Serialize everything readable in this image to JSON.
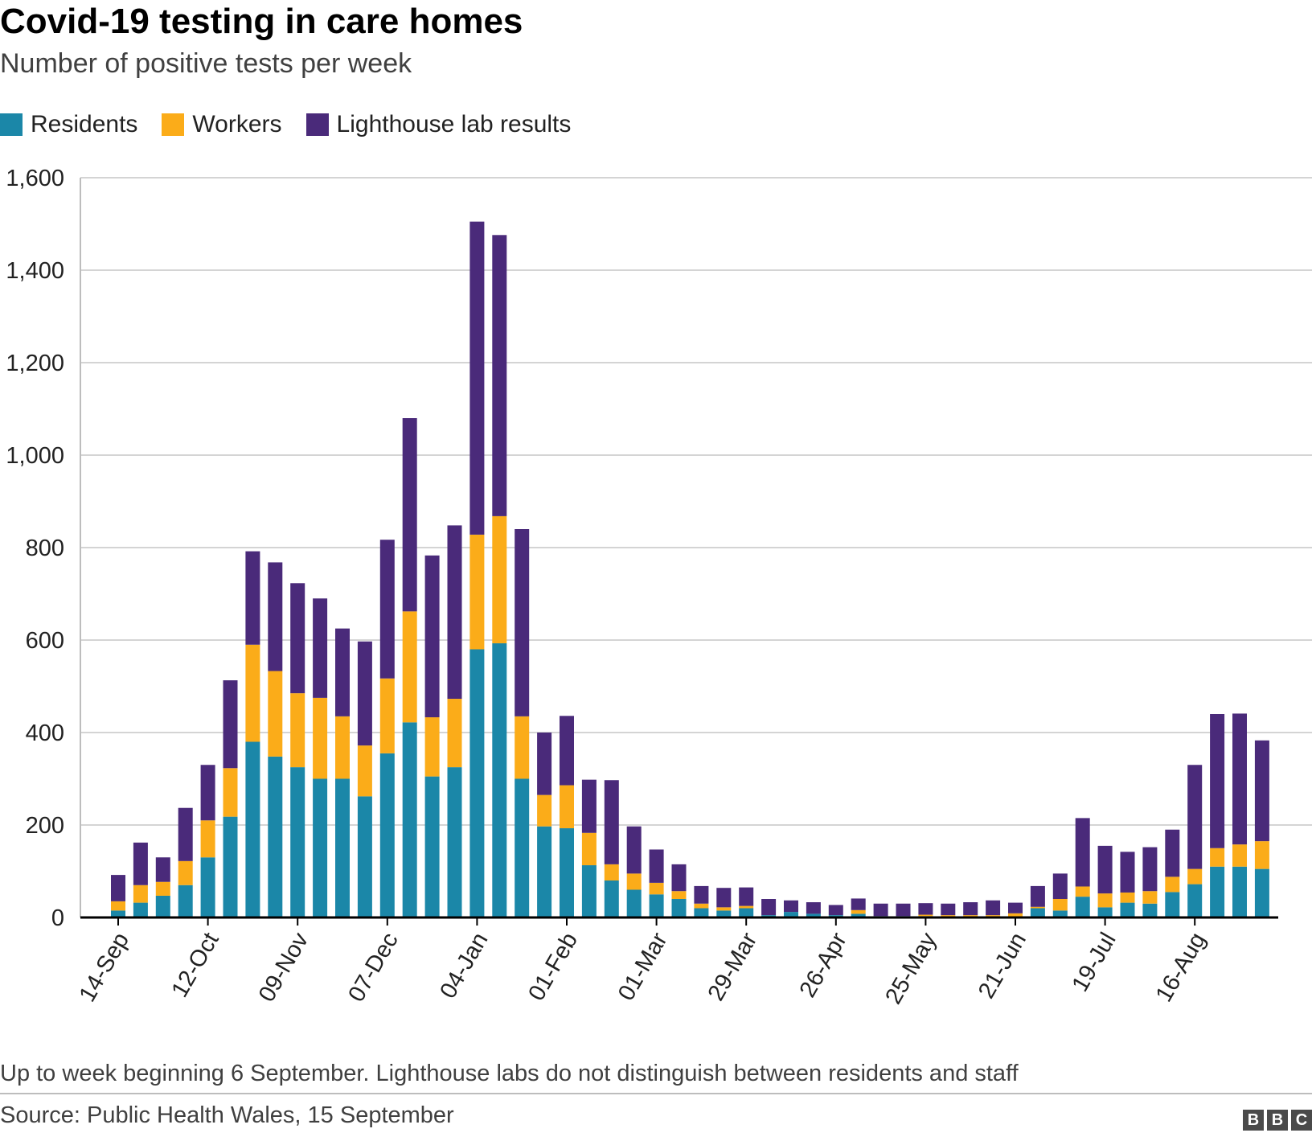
{
  "header": {
    "title": "Covid-19 testing in care homes",
    "subtitle": "Number of positive tests per week"
  },
  "legend": [
    {
      "label": "Residents",
      "color": "#1b87a8"
    },
    {
      "label": "Workers",
      "color": "#fbac19"
    },
    {
      "label": "Lighthouse lab results",
      "color": "#4a2a7a"
    }
  ],
  "footer": {
    "note": "Up to week beginning 6 September. Lighthouse labs do not distinguish between residents and staff",
    "source": "Source: Public Health Wales, 15 September",
    "logo_letters": [
      "B",
      "B",
      "C"
    ]
  },
  "chart_data": {
    "type": "bar",
    "stacked": true,
    "title": "Covid-19 testing in care homes",
    "subtitle": "Number of positive tests per week",
    "xlabel": "",
    "ylabel": "",
    "ylim": [
      0,
      1600
    ],
    "yticks": [
      0,
      200,
      400,
      600,
      800,
      1000,
      1200,
      1400,
      1600
    ],
    "ytick_labels": [
      "0",
      "200",
      "400",
      "600",
      "800",
      "1,000",
      "1,200",
      "1,400",
      "1,600"
    ],
    "grid": true,
    "legend_position": "top-left",
    "xtick_labels": [
      {
        "index": 0,
        "label": "14-Sep"
      },
      {
        "index": 4,
        "label": "12-Oct"
      },
      {
        "index": 8,
        "label": "09-Nov"
      },
      {
        "index": 12,
        "label": "07-Dec"
      },
      {
        "index": 16,
        "label": "04-Jan"
      },
      {
        "index": 20,
        "label": "01-Feb"
      },
      {
        "index": 24,
        "label": "01-Mar"
      },
      {
        "index": 28,
        "label": "29-Mar"
      },
      {
        "index": 32,
        "label": "26-Apr"
      },
      {
        "index": 36,
        "label": "25-May"
      },
      {
        "index": 40,
        "label": "21-Jun"
      },
      {
        "index": 44,
        "label": "19-Jul"
      },
      {
        "index": 48,
        "label": "16-Aug"
      }
    ],
    "series": [
      {
        "name": "Residents",
        "color": "#1b87a8",
        "values": [
          15,
          32,
          47,
          70,
          130,
          218,
          380,
          348,
          325,
          300,
          300,
          262,
          355,
          422,
          305,
          325,
          580,
          593,
          300,
          197,
          193,
          113,
          80,
          60,
          50,
          40,
          20,
          15,
          20,
          5,
          12,
          8,
          5,
          8,
          3,
          3,
          3,
          2,
          2,
          2,
          2,
          20,
          15,
          45,
          22,
          32,
          30,
          55,
          72,
          110,
          110,
          105
        ]
      },
      {
        "name": "Workers",
        "color": "#fbac19",
        "values": [
          20,
          38,
          30,
          52,
          80,
          105,
          210,
          185,
          160,
          175,
          135,
          110,
          162,
          240,
          128,
          148,
          248,
          275,
          135,
          68,
          93,
          70,
          35,
          35,
          25,
          17,
          10,
          7,
          5,
          0,
          0,
          0,
          0,
          8,
          0,
          0,
          3,
          3,
          3,
          3,
          7,
          3,
          25,
          22,
          30,
          22,
          27,
          33,
          33,
          40,
          48,
          60
        ]
      },
      {
        "name": "Lighthouse lab results",
        "color": "#4a2a7a",
        "values": [
          57,
          92,
          53,
          115,
          120,
          190,
          202,
          235,
          238,
          215,
          190,
          225,
          300,
          418,
          350,
          375,
          677,
          608,
          405,
          135,
          150,
          115,
          182,
          102,
          72,
          58,
          38,
          42,
          40,
          35,
          25,
          25,
          22,
          25,
          27,
          27,
          25,
          25,
          28,
          32,
          23,
          45,
          55,
          148,
          103,
          88,
          95,
          102,
          225,
          290,
          283,
          218
        ]
      }
    ]
  }
}
